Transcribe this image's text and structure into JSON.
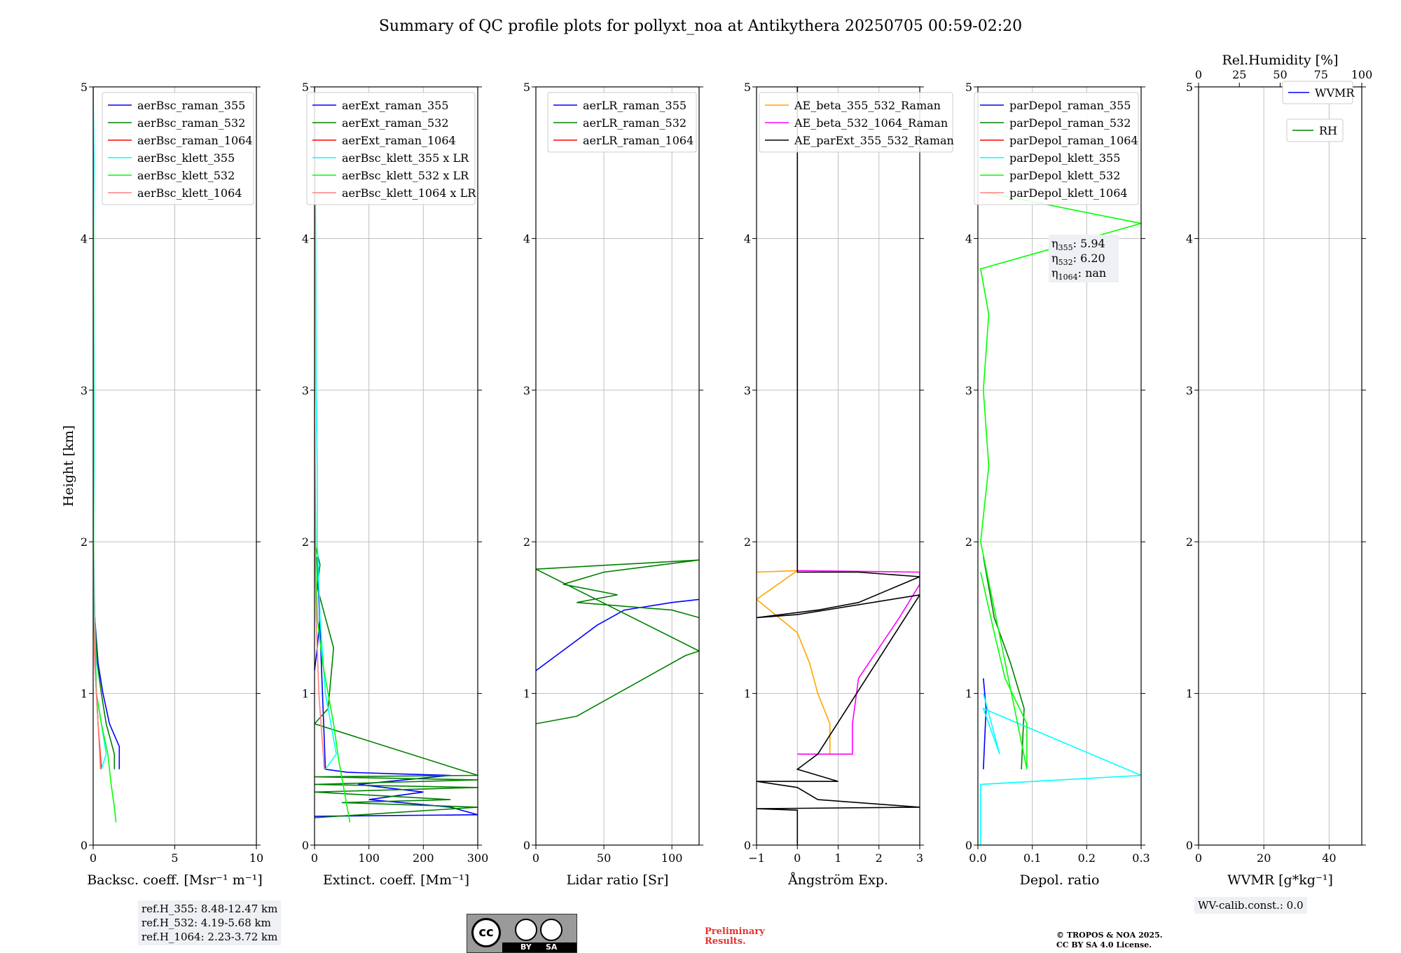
{
  "title": "Summary of QC profile plots for pollyxt_noa at Antikythera 20250705 00:59-02:20",
  "colors": {
    "b355": "#0000ff",
    "g532": "#008000",
    "r1064": "#ff0000",
    "c355": "#00ffff",
    "l532": "#00ff00",
    "p1064": "#ff8080",
    "orange": "#ffa500",
    "magenta": "#ff00ff",
    "black": "#000000"
  },
  "chart_data": [
    {
      "type": "line",
      "xlabel": "Backsc. coeff. [Msr⁻¹ m⁻¹]",
      "ylabel": "Height [km]",
      "xlim": [
        0,
        10
      ],
      "ylim": [
        0,
        5
      ],
      "xticks": [
        0,
        5,
        10
      ],
      "yticks": [
        0,
        1,
        2,
        3,
        4,
        5
      ],
      "grid": true,
      "legend": "upper-right",
      "series": [
        {
          "name": "aerBsc_raman_355",
          "color": "b355",
          "points": [
            [
              0,
              1.9
            ],
            [
              0.1,
              1.5
            ],
            [
              0.3,
              1.2
            ],
            [
              0.6,
              1.0
            ],
            [
              1.0,
              0.8
            ],
            [
              1.6,
              0.65
            ],
            [
              1.6,
              0.5
            ]
          ]
        },
        {
          "name": "aerBsc_raman_532",
          "color": "g532",
          "points": [
            [
              0,
              1.9
            ],
            [
              0.1,
              1.5
            ],
            [
              0.25,
              1.2
            ],
            [
              0.5,
              1.0
            ],
            [
              0.8,
              0.8
            ],
            [
              1.3,
              0.6
            ],
            [
              1.3,
              0.5
            ]
          ]
        },
        {
          "name": "aerBsc_raman_1064",
          "color": "r1064",
          "points": [
            [
              0,
              1.9
            ],
            [
              0.05,
              1.5
            ],
            [
              0.1,
              1.2
            ],
            [
              0.2,
              1.0
            ],
            [
              0.3,
              0.8
            ],
            [
              0.5,
              0.5
            ]
          ]
        },
        {
          "name": "aerBsc_klett_355",
          "color": "c355",
          "points": [
            [
              0,
              5
            ],
            [
              0.05,
              4.5
            ],
            [
              0.02,
              4
            ],
            [
              0.05,
              3
            ],
            [
              0.05,
              2.5
            ],
            [
              0.02,
              2
            ],
            [
              0.1,
              1.5
            ],
            [
              0.2,
              1.0
            ],
            [
              0.5,
              0.8
            ],
            [
              0.8,
              0.6
            ],
            [
              0.5,
              0.5
            ]
          ]
        },
        {
          "name": "aerBsc_klett_532",
          "color": "l532",
          "points": [
            [
              0,
              5
            ],
            [
              0.02,
              4
            ],
            [
              0.02,
              3
            ],
            [
              0.02,
              2
            ],
            [
              0.05,
              1.5
            ],
            [
              0.2,
              1.0
            ],
            [
              0.5,
              0.8
            ],
            [
              0.9,
              0.6
            ],
            [
              1.1,
              0.4
            ],
            [
              1.3,
              0.25
            ],
            [
              1.4,
              0.15
            ]
          ]
        },
        {
          "name": "aerBsc_klett_1064",
          "color": "p1064",
          "points": [
            [
              0,
              5
            ],
            [
              0.01,
              4
            ],
            [
              0.01,
              3
            ],
            [
              0.01,
              2
            ],
            [
              0.05,
              1.5
            ],
            [
              0.1,
              1.2
            ],
            [
              0.2,
              1.0
            ],
            [
              0.3,
              0.8
            ],
            [
              0.45,
              0.5
            ]
          ]
        }
      ],
      "info": [
        "ref.H_355: 8.48-12.47 km",
        "ref.H_532: 4.19-5.68 km",
        "ref.H_1064: 2.23-3.72 km"
      ]
    },
    {
      "type": "line",
      "xlabel": "Extinct. coeff. [Mm⁻¹]",
      "xlim": [
        0,
        300
      ],
      "ylim": [
        0,
        5
      ],
      "xticks": [
        0,
        100,
        200,
        300
      ],
      "yticks": [
        0,
        1,
        2,
        3,
        4,
        5
      ],
      "grid": true,
      "legend": "upper-right",
      "series": [
        {
          "name": "aerExt_raman_355",
          "color": "b355",
          "points": [
            [
              0,
              1.15
            ],
            [
              5,
              1.3
            ],
            [
              10,
              1.5
            ],
            [
              8,
              1.7
            ],
            [
              5,
              1.9
            ],
            [
              20,
              0.5
            ],
            [
              60,
              0.48
            ],
            [
              150,
              0.47
            ],
            [
              250,
              0.46
            ],
            [
              80,
              0.4
            ],
            [
              200,
              0.35
            ],
            [
              100,
              0.3
            ],
            [
              250,
              0.25
            ],
            [
              300,
              0.2
            ],
            [
              0,
              0.19
            ]
          ]
        },
        {
          "name": "aerExt_raman_532",
          "color": "g532",
          "points": [
            [
              0,
              4.3
            ],
            [
              0,
              2
            ],
            [
              10,
              1.85
            ],
            [
              5,
              1.7
            ],
            [
              20,
              1.5
            ],
            [
              35,
              1.3
            ],
            [
              30,
              1.1
            ],
            [
              25,
              0.9
            ],
            [
              0,
              0.8
            ],
            [
              300,
              0.46
            ],
            [
              0,
              0.45
            ],
            [
              300,
              0.43
            ],
            [
              0,
              0.4
            ],
            [
              300,
              0.38
            ],
            [
              0,
              0.35
            ],
            [
              250,
              0.3
            ],
            [
              50,
              0.28
            ],
            [
              300,
              0.25
            ],
            [
              0,
              0.18
            ]
          ]
        },
        {
          "name": "aerExt_raman_1064",
          "color": "r1064",
          "points": []
        },
        {
          "name": "aerBsc_klett_355 x LR",
          "color": "c355",
          "points": [
            [
              0,
              5
            ],
            [
              2,
              4
            ],
            [
              3,
              3
            ],
            [
              5,
              2.5
            ],
            [
              5,
              2
            ],
            [
              10,
              1.5
            ],
            [
              20,
              1.0
            ],
            [
              30,
              0.8
            ],
            [
              40,
              0.6
            ],
            [
              20,
              0.5
            ]
          ]
        },
        {
          "name": "aerBsc_klett_532 x LR",
          "color": "l532",
          "points": [
            [
              0,
              5
            ],
            [
              0,
              3
            ],
            [
              2,
              2
            ],
            [
              5,
              1.5
            ],
            [
              15,
              1.2
            ],
            [
              25,
              1.0
            ],
            [
              35,
              0.8
            ],
            [
              45,
              0.55
            ],
            [
              55,
              0.35
            ],
            [
              65,
              0.15
            ]
          ]
        },
        {
          "name": "aerBsc_klett_1064 x LR",
          "color": "p1064",
          "points": [
            [
              0,
              5
            ],
            [
              0,
              3
            ],
            [
              1,
              2
            ],
            [
              3,
              1.5
            ],
            [
              8,
              1.0
            ],
            [
              12,
              0.8
            ],
            [
              18,
              0.5
            ]
          ]
        }
      ]
    },
    {
      "type": "line",
      "xlabel": "Lidar ratio [Sr]",
      "xlim": [
        0,
        120
      ],
      "ylim": [
        0,
        5
      ],
      "xticks": [
        0,
        50,
        100
      ],
      "yticks": [
        0,
        1,
        2,
        3,
        4,
        5
      ],
      "grid": true,
      "legend": "upper-right",
      "series": [
        {
          "name": "aerLR_raman_355",
          "color": "b355",
          "points": [
            [
              0,
              1.15
            ],
            [
              15,
              1.25
            ],
            [
              30,
              1.35
            ],
            [
              45,
              1.45
            ],
            [
              55,
              1.5
            ],
            [
              65,
              1.55
            ],
            [
              100,
              1.6
            ],
            [
              120,
              1.62
            ]
          ]
        },
        {
          "name": "aerLR_raman_532",
          "color": "g532",
          "points": [
            [
              0,
              0.8
            ],
            [
              30,
              0.85
            ],
            [
              50,
              0.95
            ],
            [
              70,
              1.05
            ],
            [
              90,
              1.15
            ],
            [
              110,
              1.25
            ],
            [
              120,
              1.28
            ],
            [
              0,
              1.82
            ],
            [
              120,
              1.88
            ],
            [
              50,
              1.8
            ],
            [
              20,
              1.72
            ],
            [
              60,
              1.65
            ],
            [
              30,
              1.6
            ],
            [
              100,
              1.55
            ],
            [
              120,
              1.5
            ]
          ]
        },
        {
          "name": "aerLR_raman_1064",
          "color": "r1064",
          "points": []
        }
      ]
    },
    {
      "type": "line",
      "xlabel": "Ångström Exp.",
      "xlim": [
        -1,
        3
      ],
      "ylim": [
        0,
        5
      ],
      "xticks": [
        -1,
        0,
        1,
        2,
        3
      ],
      "yticks": [
        0,
        1,
        2,
        3,
        4,
        5
      ],
      "grid": true,
      "legend": "upper-left",
      "series": [
        {
          "name": "AE_beta_355_532_Raman",
          "color": "orange",
          "points": [
            [
              -1,
              1.8
            ],
            [
              0,
              1.81
            ],
            [
              -1,
              1.62
            ],
            [
              0,
              1.4
            ],
            [
              0.3,
              1.2
            ],
            [
              0.5,
              1.0
            ],
            [
              0.8,
              0.8
            ],
            [
              0.8,
              0.6
            ]
          ]
        },
        {
          "name": "AE_beta_532_1064_Raman",
          "color": "magenta",
          "points": [
            [
              0,
              0.6
            ],
            [
              1.35,
              0.6
            ],
            [
              1.35,
              0.8
            ],
            [
              1.5,
              1.1
            ],
            [
              2,
              1.3
            ],
            [
              2.5,
              1.5
            ],
            [
              3,
              1.72
            ],
            [
              3,
              1.8
            ],
            [
              0,
              1.81
            ]
          ]
        },
        {
          "name": "AE_parExt_355_532_Raman",
          "color": "black",
          "points": [
            [
              0,
              5
            ],
            [
              0,
              1.8
            ],
            [
              1.5,
              1.8
            ],
            [
              3,
              1.77
            ],
            [
              1.5,
              1.6
            ],
            [
              0.5,
              1.55
            ],
            [
              -1,
              1.5
            ],
            [
              0,
              1.52
            ],
            [
              3,
              1.65
            ],
            [
              0.5,
              0.6
            ],
            [
              0,
              0.5
            ],
            [
              1,
              0.42
            ],
            [
              -1,
              0.42
            ],
            [
              0,
              0.38
            ],
            [
              0.5,
              0.3
            ],
            [
              3,
              0.25
            ],
            [
              -1,
              0.24
            ],
            [
              0,
              0.23
            ],
            [
              0,
              0
            ]
          ]
        }
      ],
      "info": [
        "η355: 5.94",
        "η532: 6.20",
        "η1064: nan"
      ]
    },
    {
      "type": "line",
      "xlabel": "Depol. ratio",
      "xlim": [
        0,
        0.3
      ],
      "ylim": [
        0,
        5
      ],
      "xticks": [
        0.0,
        0.1,
        0.2,
        0.3
      ],
      "yticks": [
        0,
        1,
        2,
        3,
        4,
        5
      ],
      "grid": true,
      "legend": "upper-right",
      "series": [
        {
          "name": "parDepol_raman_355",
          "color": "b355",
          "points": [
            [
              0.01,
              1.1
            ],
            [
              0.015,
              0.9
            ],
            [
              0.01,
              0.5
            ]
          ]
        },
        {
          "name": "parDepol_raman_532",
          "color": "g532",
          "points": [
            [
              0.01,
              1.9
            ],
            [
              0.03,
              1.5
            ],
            [
              0.06,
              1.2
            ],
            [
              0.085,
              0.9
            ],
            [
              0.08,
              0.5
            ]
          ]
        },
        {
          "name": "parDepol_raman_1064",
          "color": "r1064",
          "points": []
        },
        {
          "name": "parDepol_klett_355",
          "color": "c355",
          "points": [
            [
              0.005,
              0
            ],
            [
              0.005,
              0.4
            ],
            [
              0.3,
              0.46
            ],
            [
              0.01,
              0.9
            ],
            [
              0.04,
              0.6
            ],
            [
              0.01,
              1.0
            ]
          ]
        },
        {
          "name": "parDepol_klett_532",
          "color": "l532",
          "points": [
            [
              0.005,
              1.8
            ],
            [
              0.03,
              1.4
            ],
            [
              0.05,
              1.1
            ],
            [
              0.09,
              0.8
            ],
            [
              0.09,
              0.5
            ],
            [
              0.005,
              2.0
            ],
            [
              0.02,
              2.5
            ],
            [
              0.01,
              3
            ],
            [
              0.02,
              3.5
            ],
            [
              0.005,
              3.8
            ],
            [
              0.3,
              4.1
            ],
            [
              0.02,
              4.3
            ]
          ]
        },
        {
          "name": "parDepol_klett_1064",
          "color": "p1064",
          "points": []
        }
      ]
    },
    {
      "type": "line",
      "xlabel": "WVMR [g*kg⁻¹]",
      "x2label": "Rel.Humidity [%]",
      "xlim": [
        0,
        50
      ],
      "x2lim": [
        0,
        100
      ],
      "ylim": [
        0,
        5
      ],
      "xticks": [
        0,
        20,
        40
      ],
      "x2ticks": [
        0,
        25,
        50,
        75,
        100
      ],
      "yticks": [
        0,
        1,
        2,
        3,
        4,
        5
      ],
      "grid": true,
      "series": [
        {
          "name": "WVMR",
          "color": "b355",
          "points": []
        },
        {
          "name": "RH",
          "color": "g532",
          "points": []
        }
      ],
      "info": [
        "WV-calib.const.: 0.0"
      ]
    }
  ],
  "footer": {
    "preliminary": "Preliminary Results.",
    "copyright": "© TROPOS & NOA 2025. CC BY SA 4.0 License.",
    "cc": "cc",
    "by": "BY",
    "sa": "SA"
  }
}
